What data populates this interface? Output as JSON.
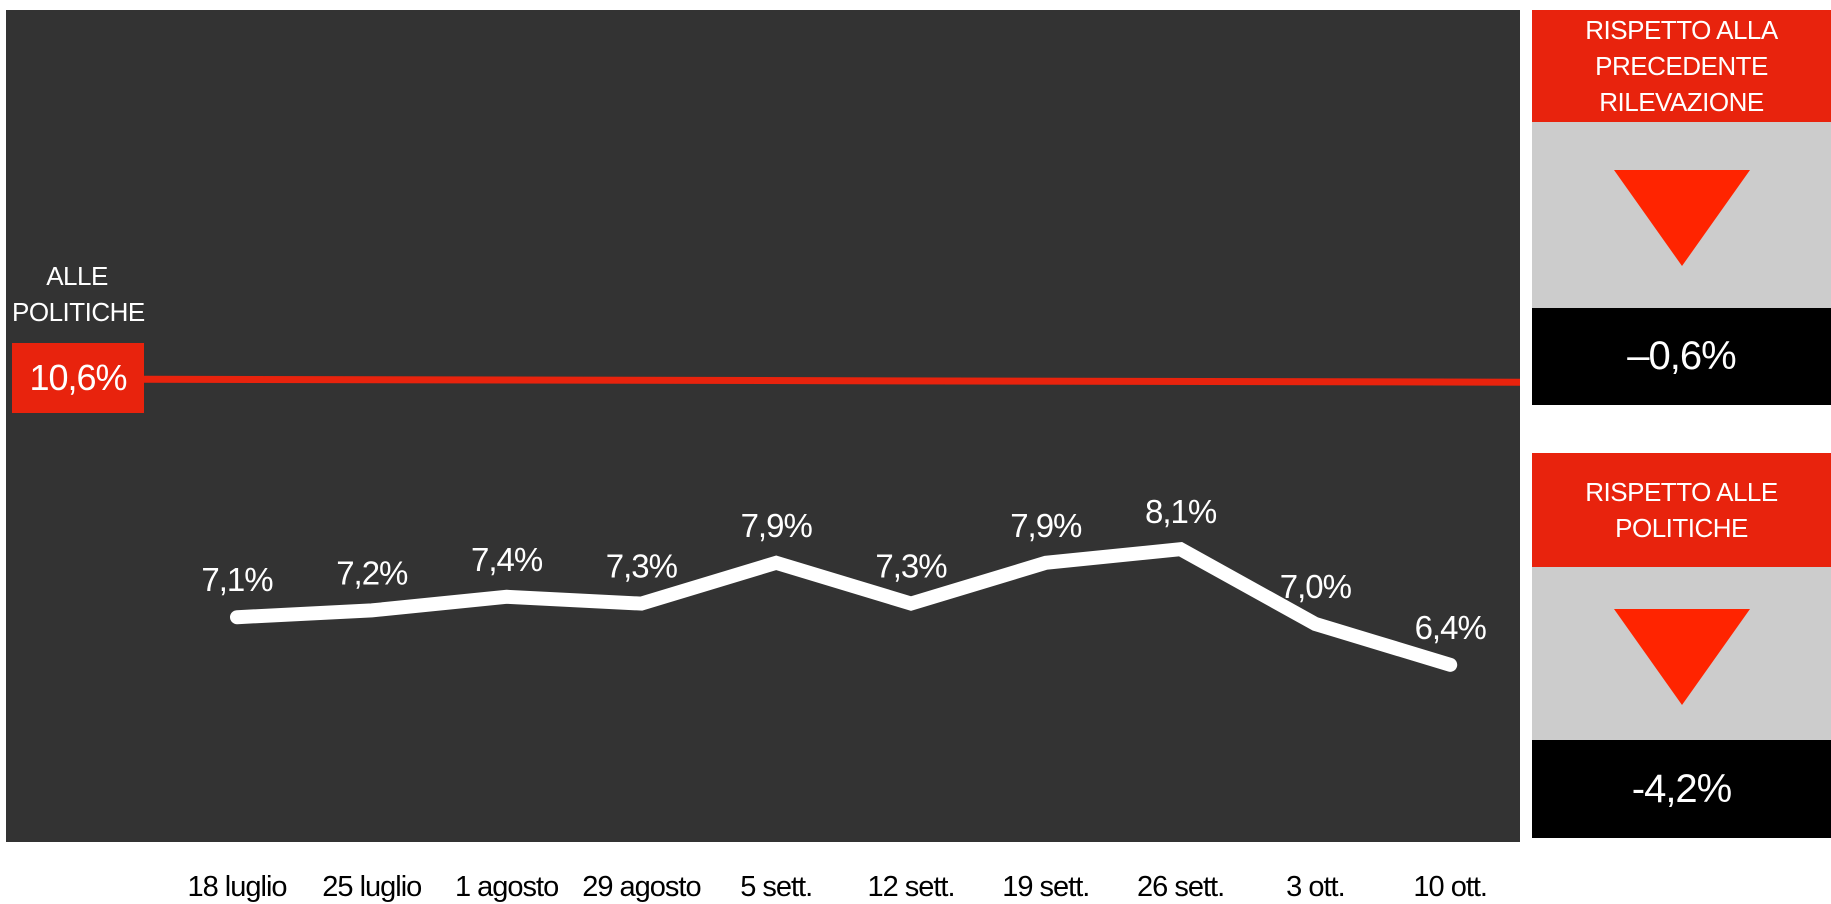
{
  "chart_data": {
    "type": "line",
    "x": [
      "18 luglio",
      "25 luglio",
      "1 agosto",
      "29 agosto",
      "5 sett.",
      "12 sett.",
      "19 sett.",
      "26 sett.",
      "3 ott.",
      "10 ott."
    ],
    "series": [
      {
        "values": [
          7.1,
          7.2,
          7.4,
          7.3,
          7.9,
          7.3,
          7.9,
          8.1,
          7.0,
          6.4
        ],
        "labels": [
          "7,1%",
          "7,2%",
          "7,4%",
          "7,3%",
          "7,9%",
          "7,3%",
          "7,9%",
          "8,1%",
          "7,0%",
          "6,4%"
        ],
        "color": "#ffffff"
      }
    ],
    "reference_line": {
      "label": "ALLE POLITICHE",
      "label_lines": [
        "ALLE",
        "POLITICHE"
      ],
      "value": 10.6,
      "value_label": "10,6%",
      "color": "#e8230d"
    }
  },
  "cards": [
    {
      "header_lines": [
        "RISPETTO ALLA",
        "PRECEDENTE RILEVAZIONE"
      ],
      "trend": "down",
      "value": "–0,6%"
    },
    {
      "header_lines": [
        "RISPETTO ALLE POLITICHE"
      ],
      "trend": "down",
      "value": "-4,2%"
    }
  ],
  "colors": {
    "panel": "#333333",
    "accent": "#e8230d",
    "arrow": "#ff2400",
    "card_body": "#cccccc",
    "card_value": "#000000"
  }
}
